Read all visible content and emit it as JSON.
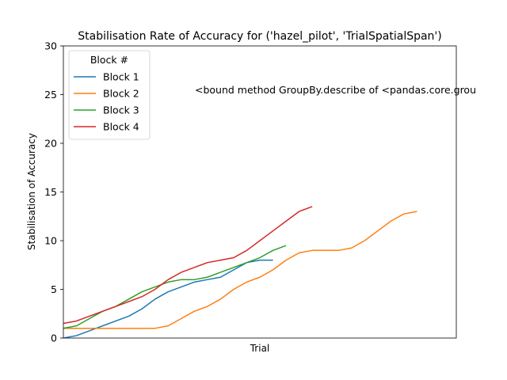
{
  "chart_data": {
    "type": "line",
    "title": "Stabilisation Rate of Accuracy for ('hazel_pilot', 'TrialSpatialSpan')",
    "xlabel": "Trial",
    "ylabel": "Stabilisation of Accuracy",
    "xlim": [
      0,
      30
    ],
    "ylim": [
      0,
      30
    ],
    "yticks": [
      0,
      5,
      10,
      15,
      20,
      25,
      30
    ],
    "grid": false,
    "legend": {
      "title": "Block #",
      "position": "upper-left"
    },
    "annotation": "<bound method GroupBy.describe of <pandas.core.grou",
    "series": [
      {
        "name": "Block 1",
        "color": "#1f77b4",
        "x": [
          0,
          1,
          2,
          3,
          4,
          5,
          6,
          7,
          8,
          9,
          10,
          11,
          12,
          13,
          14,
          15,
          16
        ],
        "y": [
          0,
          0.25,
          0.75,
          1.25,
          1.75,
          2.25,
          3.0,
          4.0,
          4.75,
          5.25,
          5.75,
          6.0,
          6.25,
          7.0,
          7.75,
          8.0,
          8.0
        ]
      },
      {
        "name": "Block 2",
        "color": "#ff7f0e",
        "x": [
          0,
          1,
          2,
          3,
          4,
          5,
          6,
          7,
          8,
          9,
          10,
          11,
          12,
          13,
          14,
          15,
          16,
          17,
          18,
          19,
          20,
          21,
          22,
          23,
          24,
          25,
          26,
          27
        ],
        "y": [
          1.0,
          1.0,
          1.0,
          1.0,
          1.0,
          1.0,
          1.0,
          1.0,
          1.25,
          2.0,
          2.75,
          3.25,
          4.0,
          5.0,
          5.75,
          6.25,
          7.0,
          8.0,
          8.75,
          9.0,
          9.0,
          9.0,
          9.25,
          10.0,
          11.0,
          12.0,
          12.75,
          13.0
        ]
      },
      {
        "name": "Block 3",
        "color": "#2ca02c",
        "x": [
          0,
          1,
          2,
          3,
          4,
          5,
          6,
          7,
          8,
          9,
          10,
          11,
          12,
          13,
          14,
          15,
          16,
          17
        ],
        "y": [
          1.0,
          1.25,
          2.0,
          2.75,
          3.25,
          4.0,
          4.75,
          5.25,
          5.75,
          6.0,
          6.0,
          6.25,
          6.75,
          7.25,
          7.75,
          8.25,
          9.0,
          9.5
        ]
      },
      {
        "name": "Block 4",
        "color": "#d62728",
        "x": [
          0,
          1,
          2,
          3,
          4,
          5,
          6,
          7,
          8,
          9,
          10,
          11,
          12,
          13,
          14,
          15,
          16,
          17,
          18,
          19
        ],
        "y": [
          1.5,
          1.75,
          2.25,
          2.75,
          3.25,
          3.75,
          4.25,
          5.0,
          6.0,
          6.75,
          7.25,
          7.75,
          8.0,
          8.25,
          9.0,
          10.0,
          11.0,
          12.0,
          13.0,
          13.5
        ]
      }
    ]
  }
}
